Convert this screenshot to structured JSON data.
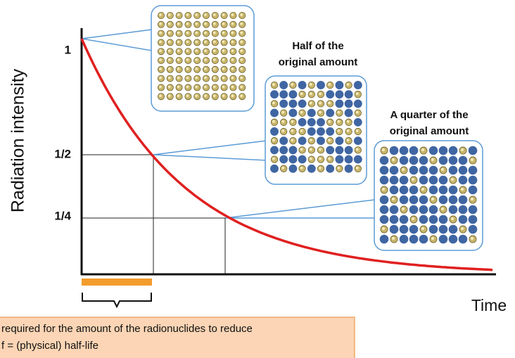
{
  "axes": {
    "y_label": "Radiation intensity",
    "x_label": "Time",
    "y_ticks": [
      "1",
      "1/2",
      "1/4"
    ]
  },
  "callouts": [
    {
      "lines": [
        "Half of the",
        "original amount"
      ]
    },
    {
      "lines": [
        "A quarter of the",
        "original amount"
      ]
    }
  ],
  "note": {
    "lines": [
      "required for the amount of the radionuclides to reduce",
      "f = (physical) half-life"
    ]
  }
}
